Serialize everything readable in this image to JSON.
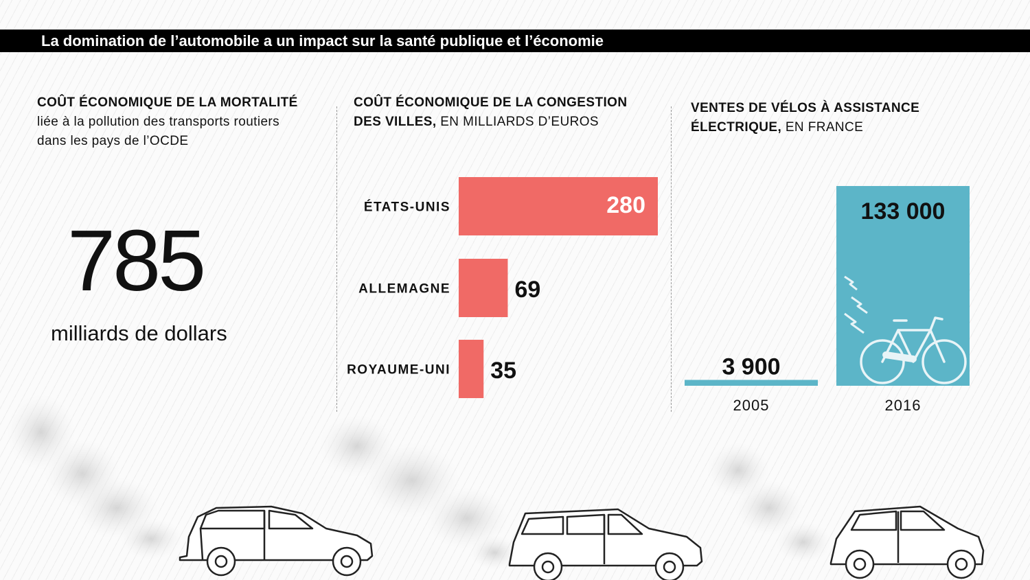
{
  "title": "La domination de l’automobile a un impact sur la santé publique et l’économie",
  "panel1": {
    "heading_bold": "COÛT ÉCONOMIQUE DE LA MORTALITÉ",
    "heading_line2": "liée à la pollution des transports routiers",
    "heading_line3": "dans les pays de l’OCDE",
    "value": "785",
    "unit": "milliards de dollars"
  },
  "panel2": {
    "heading_bold_1": "COÛT ÉCONOMIQUE DE LA CONGESTION",
    "heading_bold_2": "DES VILLES,",
    "heading_rest": " EN MILLIARDS D’EUROS"
  },
  "panel3": {
    "heading_bold_1": "VENTES DE VÉLOS À ASSISTANCE",
    "heading_bold_2": "ÉLECTRIQUE,",
    "heading_rest": " EN FRANCE"
  },
  "chart_data": [
    {
      "type": "bar",
      "orientation": "horizontal",
      "title": "COÛT ÉCONOMIQUE DE LA CONGESTION DES VILLES, EN MILLIARDS D’EUROS",
      "categories": [
        "ÉTATS-UNIS",
        "ALLEMAGNE",
        "ROYAUME-UNI"
      ],
      "values": [
        280,
        69,
        35
      ],
      "value_labels": [
        "280",
        "69",
        "35"
      ],
      "color": "#f06a66"
    },
    {
      "type": "bar",
      "title": "VENTES DE VÉLOS À ASSISTANCE ÉLECTRIQUE, EN FRANCE",
      "categories": [
        "2005",
        "2016"
      ],
      "values": [
        3900,
        133000
      ],
      "value_labels": [
        "3 900",
        "133 000"
      ],
      "color": "#5cb5c8"
    }
  ],
  "icons": [
    "smoke-icon",
    "car-icon",
    "bicycle-icon",
    "lightning-icon"
  ]
}
